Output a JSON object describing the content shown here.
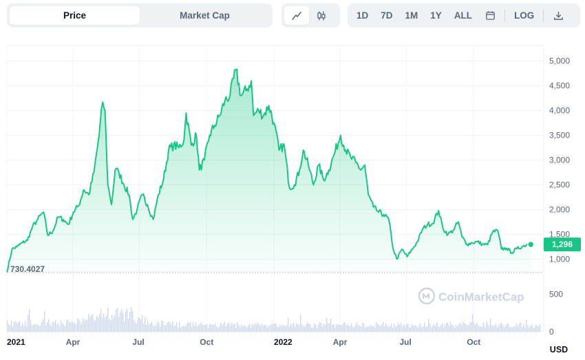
{
  "toolbar": {
    "tabs": [
      {
        "label": "Price",
        "active": true
      },
      {
        "label": "Market Cap",
        "active": false
      }
    ],
    "chart_modes": [
      {
        "icon": "line-chart-icon",
        "active": true
      },
      {
        "icon": "candlestick-icon",
        "active": false
      }
    ],
    "ranges": [
      "1D",
      "7D",
      "1M",
      "1Y",
      "ALL"
    ],
    "calendar_icon": "calendar-icon",
    "log_label": "LOG",
    "download_icon": "download-icon"
  },
  "watermark": {
    "text": "CoinMarketCap",
    "icon": "coinmarketcap-logo"
  },
  "currency_label": "USD",
  "chart_data": {
    "type": "area",
    "x_start": "2021-01-01",
    "x_end": "2022-12-31",
    "x_ticks": [
      {
        "label": "2021",
        "date": "2021-01-01",
        "year": true
      },
      {
        "label": "Apr",
        "date": "2021-04-01",
        "year": false
      },
      {
        "label": "Jul",
        "date": "2021-07-01",
        "year": false
      },
      {
        "label": "Oct",
        "date": "2021-10-01",
        "year": false
      },
      {
        "label": "2022",
        "date": "2022-01-01",
        "year": true
      },
      {
        "label": "Apr",
        "date": "2022-04-01",
        "year": false
      },
      {
        "label": "Jul",
        "date": "2022-07-01",
        "year": false
      },
      {
        "label": "Oct",
        "date": "2022-10-01",
        "year": false
      }
    ],
    "y_ticks": [
      1000,
      1500,
      2000,
      2500,
      3000,
      3500,
      4000,
      4500,
      5000
    ],
    "y_tick_labels": [
      "1,000",
      "1,500",
      "2,000",
      "2,500",
      "3,000",
      "3,500",
      "4,000",
      "4,500",
      "5,000"
    ],
    "ylim": [
      700,
      5300
    ],
    "min_value": 730.4027,
    "min_label": "730.4027",
    "current_value": 1296,
    "current_label": "1,296",
    "line_color": "#16c784",
    "series": [
      {
        "points": [
          [
            "2021-01-01",
            735
          ],
          [
            "2021-01-08",
            1200
          ],
          [
            "2021-01-15",
            1250
          ],
          [
            "2021-01-22",
            1330
          ],
          [
            "2021-01-29",
            1380
          ],
          [
            "2021-02-05",
            1650
          ],
          [
            "2021-02-12",
            1800
          ],
          [
            "2021-02-20",
            1950
          ],
          [
            "2021-02-26",
            1480
          ],
          [
            "2021-03-05",
            1570
          ],
          [
            "2021-03-12",
            1850
          ],
          [
            "2021-03-19",
            1800
          ],
          [
            "2021-03-26",
            1700
          ],
          [
            "2021-04-02",
            1950
          ],
          [
            "2021-04-09",
            2080
          ],
          [
            "2021-04-16",
            2400
          ],
          [
            "2021-04-23",
            2300
          ],
          [
            "2021-04-30",
            2750
          ],
          [
            "2021-05-07",
            3500
          ],
          [
            "2021-05-12",
            4170
          ],
          [
            "2021-05-15",
            4000
          ],
          [
            "2021-05-19",
            2500
          ],
          [
            "2021-05-24",
            2100
          ],
          [
            "2021-05-29",
            2800
          ],
          [
            "2021-06-03",
            2750
          ],
          [
            "2021-06-10",
            2500
          ],
          [
            "2021-06-17",
            2300
          ],
          [
            "2021-06-22",
            1800
          ],
          [
            "2021-06-28",
            2000
          ],
          [
            "2021-07-05",
            2300
          ],
          [
            "2021-07-12",
            2100
          ],
          [
            "2021-07-20",
            1800
          ],
          [
            "2021-07-27",
            2300
          ],
          [
            "2021-08-03",
            2600
          ],
          [
            "2021-08-10",
            3200
          ],
          [
            "2021-08-17",
            3300
          ],
          [
            "2021-08-24",
            3250
          ],
          [
            "2021-08-31",
            3400
          ],
          [
            "2021-09-03",
            3950
          ],
          [
            "2021-09-10",
            3300
          ],
          [
            "2021-09-17",
            3500
          ],
          [
            "2021-09-21",
            2800
          ],
          [
            "2021-09-28",
            3000
          ],
          [
            "2021-10-05",
            3500
          ],
          [
            "2021-10-12",
            3700
          ],
          [
            "2021-10-19",
            3900
          ],
          [
            "2021-10-26",
            4200
          ],
          [
            "2021-11-02",
            4300
          ],
          [
            "2021-11-10",
            4820
          ],
          [
            "2021-11-17",
            4300
          ],
          [
            "2021-11-24",
            4400
          ],
          [
            "2021-12-01",
            4600
          ],
          [
            "2021-12-04",
            3900
          ],
          [
            "2021-12-11",
            4000
          ],
          [
            "2021-12-18",
            3900
          ],
          [
            "2021-12-25",
            4100
          ],
          [
            "2022-01-01",
            3750
          ],
          [
            "2022-01-08",
            3200
          ],
          [
            "2022-01-15",
            3300
          ],
          [
            "2022-01-22",
            2450
          ],
          [
            "2022-01-29",
            2500
          ],
          [
            "2022-02-05",
            2800
          ],
          [
            "2022-02-10",
            3200
          ],
          [
            "2022-02-17",
            2900
          ],
          [
            "2022-02-24",
            2500
          ],
          [
            "2022-03-03",
            2900
          ],
          [
            "2022-03-10",
            2600
          ],
          [
            "2022-03-17",
            2800
          ],
          [
            "2022-03-24",
            3100
          ],
          [
            "2022-04-02",
            3500
          ],
          [
            "2022-04-09",
            3200
          ],
          [
            "2022-04-16",
            3050
          ],
          [
            "2022-04-23",
            2950
          ],
          [
            "2022-04-30",
            2800
          ],
          [
            "2022-05-05",
            2900
          ],
          [
            "2022-05-10",
            2300
          ],
          [
            "2022-05-17",
            2050
          ],
          [
            "2022-05-24",
            1950
          ],
          [
            "2022-05-31",
            1900
          ],
          [
            "2022-06-07",
            1800
          ],
          [
            "2022-06-13",
            1200
          ],
          [
            "2022-06-18",
            1000
          ],
          [
            "2022-06-25",
            1200
          ],
          [
            "2022-07-02",
            1050
          ],
          [
            "2022-07-09",
            1200
          ],
          [
            "2022-07-16",
            1350
          ],
          [
            "2022-07-23",
            1600
          ],
          [
            "2022-07-30",
            1700
          ],
          [
            "2022-08-06",
            1720
          ],
          [
            "2022-08-14",
            1980
          ],
          [
            "2022-08-20",
            1620
          ],
          [
            "2022-08-27",
            1500
          ],
          [
            "2022-09-03",
            1580
          ],
          [
            "2022-09-10",
            1750
          ],
          [
            "2022-09-15",
            1450
          ],
          [
            "2022-09-22",
            1300
          ],
          [
            "2022-09-29",
            1330
          ],
          [
            "2022-10-06",
            1350
          ],
          [
            "2022-10-13",
            1300
          ],
          [
            "2022-10-20",
            1290
          ],
          [
            "2022-10-27",
            1550
          ],
          [
            "2022-11-03",
            1570
          ],
          [
            "2022-11-08",
            1200
          ],
          [
            "2022-11-15",
            1220
          ],
          [
            "2022-11-22",
            1130
          ],
          [
            "2022-11-29",
            1210
          ],
          [
            "2022-12-06",
            1250
          ],
          [
            "2022-12-13",
            1300
          ],
          [
            "2022-12-18",
            1296
          ]
        ]
      }
    ],
    "volume": {
      "ylim": [
        0,
        700
      ],
      "y_ticks": [
        0,
        500
      ],
      "y_tick_labels": [
        "0",
        "500"
      ]
    }
  }
}
